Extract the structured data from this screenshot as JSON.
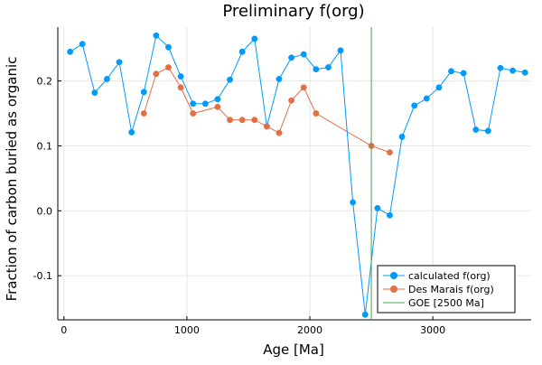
{
  "chart_data": {
    "type": "line",
    "title": "Preliminary f(org)",
    "xlabel": "Age [Ma]",
    "ylabel": "Fraction of carbon buried as organic",
    "xlim": [
      -50,
      3800
    ],
    "ylim": [
      -0.168,
      0.283
    ],
    "xticks": [
      0,
      1000,
      2000,
      3000
    ],
    "yticks": [
      -0.1,
      0.0,
      0.1,
      0.2
    ],
    "ytick_labels": [
      "-0.1",
      "0.0",
      "0.1",
      "0.2"
    ],
    "grid": true,
    "legend_position": "bottom-right",
    "series": [
      {
        "name": "calculated f(org)",
        "color": "#009AFA",
        "x": [
          50,
          150,
          250,
          350,
          450,
          550,
          650,
          750,
          850,
          950,
          1050,
          1150,
          1250,
          1350,
          1450,
          1550,
          1650,
          1750,
          1850,
          1950,
          2050,
          2150,
          2250,
          2350,
          2450,
          2550,
          2650,
          2750,
          2850,
          2950,
          3050,
          3150,
          3250,
          3350,
          3450,
          3550,
          3650,
          3750
        ],
        "y": [
          0.245,
          0.257,
          0.182,
          0.203,
          0.229,
          0.121,
          0.183,
          0.27,
          0.252,
          0.207,
          0.165,
          0.165,
          0.172,
          0.202,
          0.245,
          0.265,
          0.13,
          0.203,
          0.236,
          0.241,
          0.218,
          0.221,
          0.247,
          0.013,
          -0.16,
          0.004,
          -0.007,
          0.114,
          0.162,
          0.173,
          0.19,
          0.215,
          0.212,
          0.125,
          0.123,
          0.22,
          0.216,
          0.213
        ]
      },
      {
        "name": "Des Marais f(org)",
        "color": "#E26F46",
        "x": [
          650,
          750,
          850,
          950,
          1050,
          1250,
          1350,
          1450,
          1550,
          1650,
          1750,
          1850,
          1950,
          2050,
          2500,
          2650
        ],
        "y": [
          0.15,
          0.211,
          0.221,
          0.19,
          0.15,
          0.16,
          0.14,
          0.14,
          0.14,
          0.13,
          0.12,
          0.17,
          0.19,
          0.15,
          0.1,
          0.09
        ]
      },
      {
        "name": "GOE [2500 Ma]",
        "color": "#3DA44D",
        "type": "vline",
        "x": [
          2500
        ]
      }
    ]
  }
}
